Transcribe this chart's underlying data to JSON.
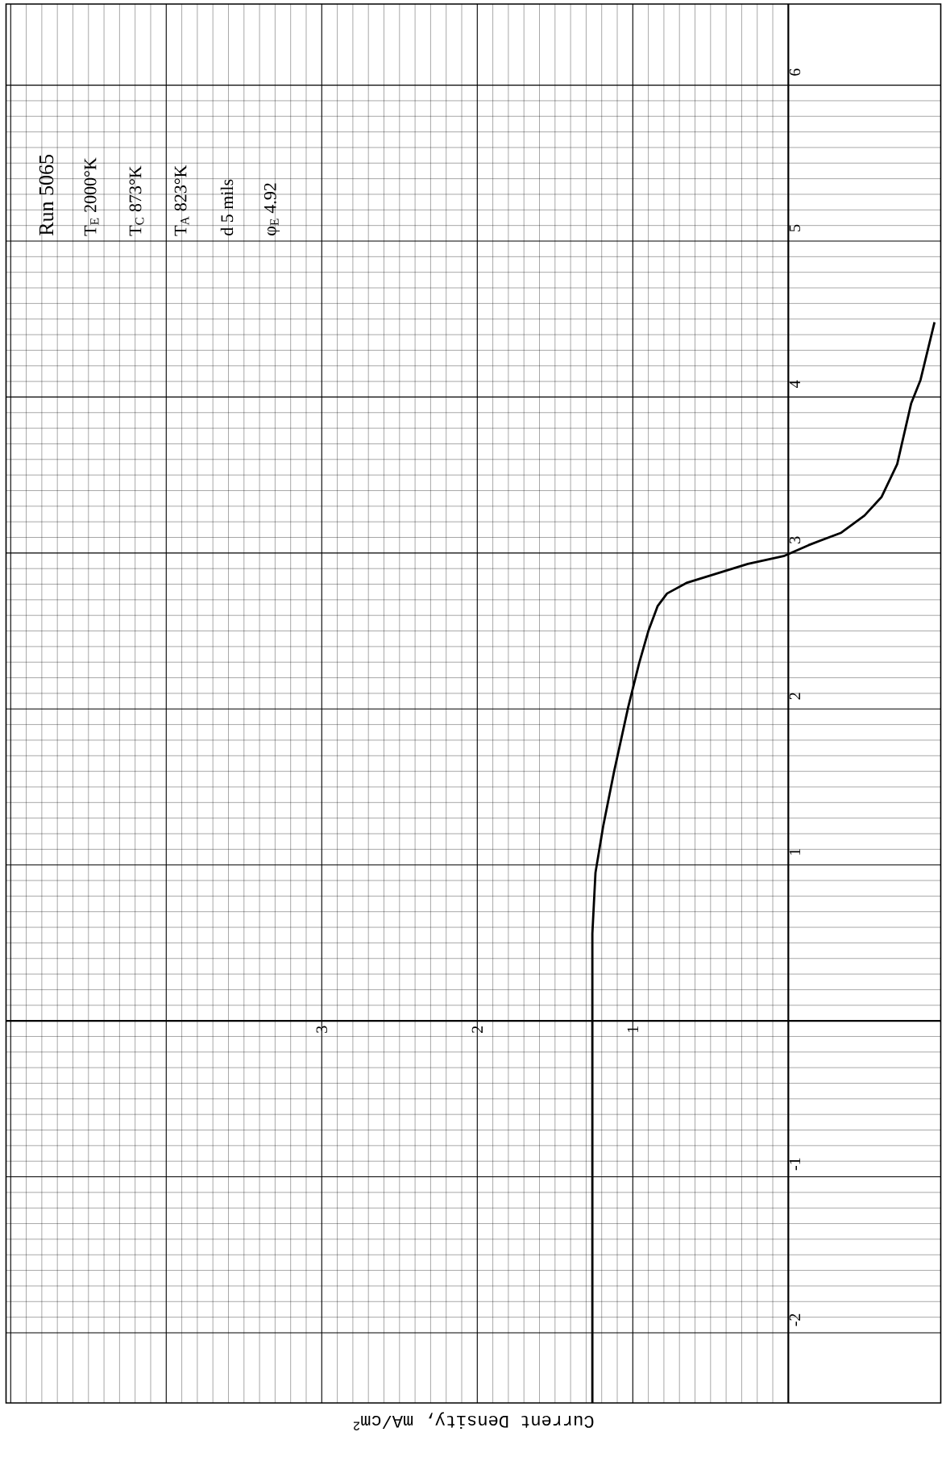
{
  "chart_data": {
    "type": "line",
    "orientation": "horizontal",
    "xlabel": "Current Density, mA/cm$^{2}$",
    "annotations": [
      "Run 5065",
      "T$_{E}$ 2000°K",
      "T$_{C}$ 873°K",
      "T$_{A}$ 823°K",
      "d 5 mils",
      "φ$_{E}$ 4.92"
    ],
    "x": [
      -2.45,
      -2,
      -1,
      0,
      0.56,
      0.95,
      1.25,
      1.6,
      2.01,
      2.29,
      2.5,
      2.66,
      2.74,
      2.81,
      2.85,
      2.93,
      2.98,
      3.05,
      3.13,
      3.24,
      3.36,
      3.57,
      3.96,
      4.11,
      4.48
    ],
    "values": [
      1.26,
      1.26,
      1.26,
      1.26,
      1.26,
      1.24,
      1.19,
      1.12,
      1.03,
      0.96,
      0.9,
      0.84,
      0.78,
      0.65,
      0.52,
      0.26,
      0.03,
      -0.13,
      -0.34,
      -0.49,
      -0.6,
      -0.7,
      -0.79,
      -0.85,
      -0.94
    ],
    "color": "#000000",
    "marker": "none",
    "line_style": "solid",
    "grid": true,
    "xlim": [
      5.03,
      -0.98
    ],
    "xticks": [
      {
        "value": 0,
        "label": null
      },
      1,
      2,
      3,
      {
        "value": 4,
        "label": null
      },
      {
        "value": 5,
        "label": null
      }
    ],
    "ylim": [
      -2.45,
      6.52
    ],
    "yticks": [
      -2,
      -1,
      {
        "value": 0,
        "label": null
      },
      1,
      2,
      3,
      4,
      5,
      6
    ]
  }
}
